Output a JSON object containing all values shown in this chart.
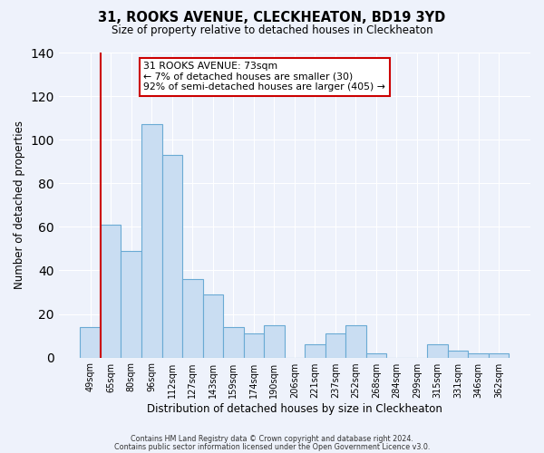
{
  "title": "31, ROOKS AVENUE, CLECKHEATON, BD19 3YD",
  "subtitle": "Size of property relative to detached houses in Cleckheaton",
  "xlabel": "Distribution of detached houses by size in Cleckheaton",
  "ylabel": "Number of detached properties",
  "categories": [
    "49sqm",
    "65sqm",
    "80sqm",
    "96sqm",
    "112sqm",
    "127sqm",
    "143sqm",
    "159sqm",
    "174sqm",
    "190sqm",
    "206sqm",
    "221sqm",
    "237sqm",
    "252sqm",
    "268sqm",
    "284sqm",
    "299sqm",
    "315sqm",
    "331sqm",
    "346sqm",
    "362sqm"
  ],
  "values": [
    14,
    61,
    49,
    107,
    93,
    36,
    29,
    14,
    11,
    15,
    0,
    6,
    11,
    15,
    2,
    0,
    0,
    6,
    3,
    2,
    2
  ],
  "bar_color": "#c9ddf2",
  "bar_edge_color": "#6aaad4",
  "ylim": [
    0,
    140
  ],
  "yticks": [
    0,
    20,
    40,
    60,
    80,
    100,
    120,
    140
  ],
  "red_line_index": 1,
  "annotation_title": "31 ROOKS AVENUE: 73sqm",
  "annotation_line1": "← 7% of detached houses are smaller (30)",
  "annotation_line2": "92% of semi-detached houses are larger (405) →",
  "footer1": "Contains HM Land Registry data © Crown copyright and database right 2024.",
  "footer2": "Contains public sector information licensed under the Open Government Licence v3.0.",
  "background_color": "#eef2fb",
  "plot_bg_color": "#eef2fb",
  "grid_color": "#ffffff"
}
